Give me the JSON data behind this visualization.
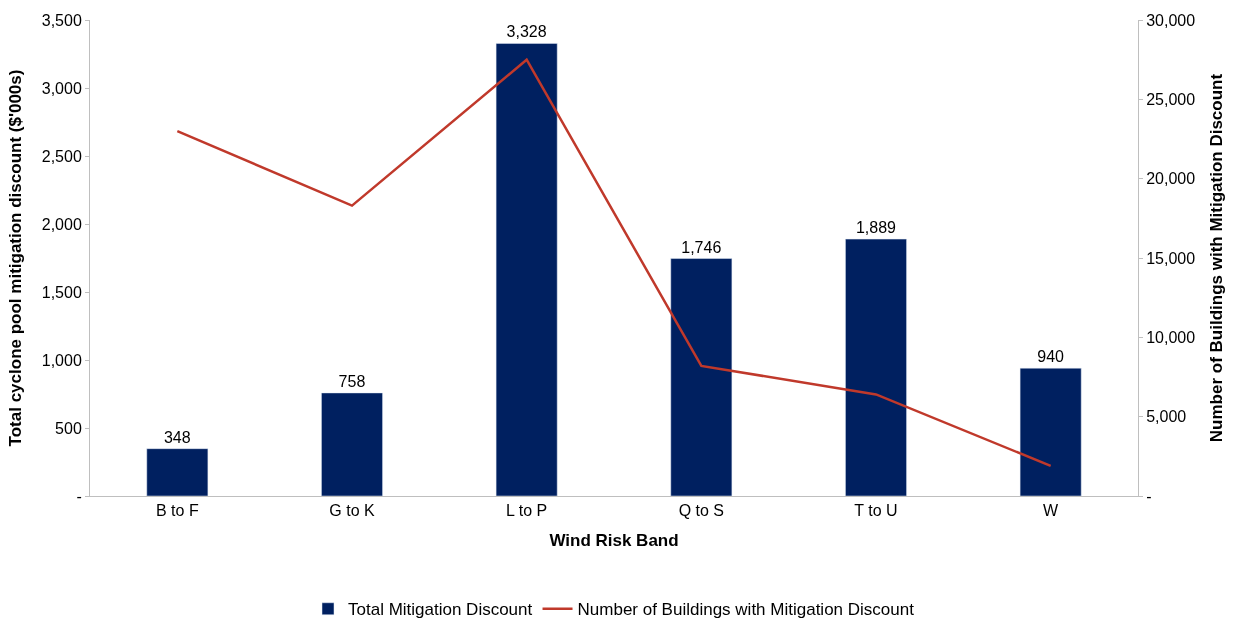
{
  "chart_data": {
    "type": "bar",
    "xlabel": "Wind Risk Band",
    "ylabel": "Total cyclone pool mitigation discount ($'000s)",
    "y2label": "Number of Buildings with Mitigation Discount",
    "categories": [
      "B to F",
      "G to K",
      "L to P",
      "Q to S",
      "T to U",
      "W"
    ],
    "series": [
      {
        "name": "Total Mitigation Discount",
        "color": "#002060",
        "values": [
          348,
          758,
          3328,
          1746,
          1889,
          940
        ],
        "value_labels": [
          "348",
          "758",
          "3,328",
          "1,746",
          "1,889",
          "940"
        ]
      },
      {
        "name": "Number of Buildings with Mitigation Discount",
        "type": "line",
        "axis": "y2",
        "color": "#c0392b",
        "values": [
          23000,
          18300,
          27500,
          8200,
          6400,
          1900
        ]
      }
    ],
    "ylim": [
      0,
      3500
    ],
    "yticks": [
      {
        "value": 0,
        "label": "-"
      },
      {
        "value": 500,
        "label": "500"
      },
      {
        "value": 1000,
        "label": "1,000"
      },
      {
        "value": 1500,
        "label": "1,500"
      },
      {
        "value": 2000,
        "label": "2,000"
      },
      {
        "value": 2500,
        "label": "2,500"
      },
      {
        "value": 3000,
        "label": "3,000"
      },
      {
        "value": 3500,
        "label": "3,500"
      }
    ],
    "y2lim": [
      0,
      30000
    ],
    "y2ticks": [
      {
        "value": 0,
        "label": "-"
      },
      {
        "value": 5000,
        "label": "5,000"
      },
      {
        "value": 10000,
        "label": "10,000"
      },
      {
        "value": 15000,
        "label": "15,000"
      },
      {
        "value": 20000,
        "label": "20,000"
      },
      {
        "value": 25000,
        "label": "25,000"
      },
      {
        "value": 30000,
        "label": "30,000"
      }
    ],
    "legend": "bottom",
    "marker": "none",
    "line_style": "solid"
  }
}
